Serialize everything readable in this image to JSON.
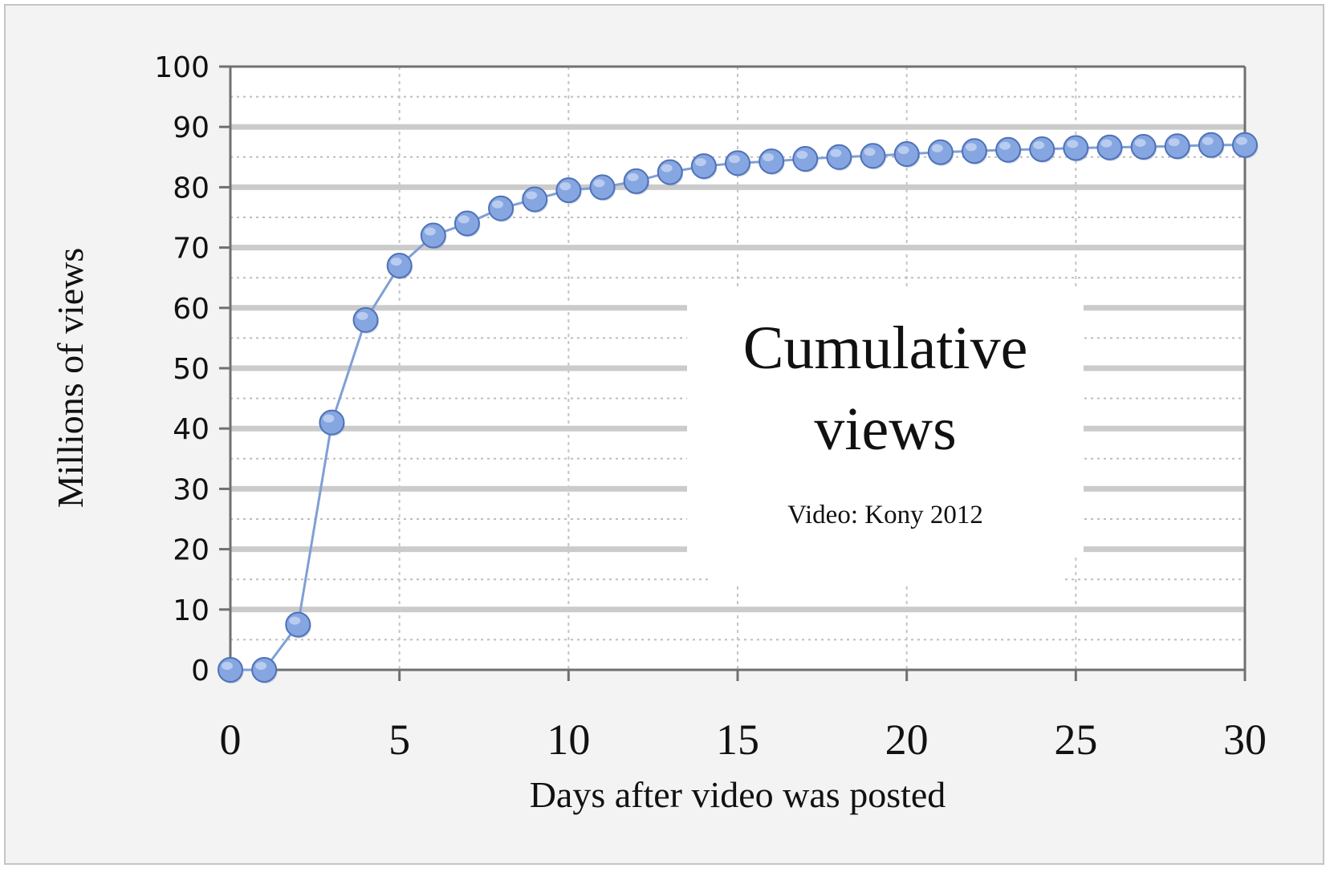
{
  "chart_data": {
    "type": "line",
    "title": "",
    "xlabel": "Days after video was posted",
    "ylabel": "Millions of views",
    "xlim": [
      0,
      30
    ],
    "ylim": [
      0,
      100
    ],
    "x_ticks": [
      "0",
      "5",
      "10",
      "15",
      "20",
      "25",
      "30"
    ],
    "y_ticks": [
      "0",
      "10",
      "20",
      "30",
      "40",
      "50",
      "60",
      "70",
      "80",
      "90",
      "100"
    ],
    "grid": true,
    "series": [
      {
        "name": "",
        "color": "#7f9fd6",
        "marker": "circle",
        "x": [
          0,
          1,
          2,
          3,
          4,
          5,
          6,
          7,
          8,
          9,
          10,
          11,
          12,
          13,
          14,
          15,
          16,
          17,
          18,
          19,
          20,
          21,
          22,
          23,
          24,
          25,
          26,
          27,
          28,
          29,
          30
        ],
        "y": [
          0,
          0,
          7.5,
          41,
          58,
          67,
          72,
          74,
          76.5,
          78,
          79.5,
          80,
          81,
          82.5,
          83.5,
          84,
          84.3,
          84.7,
          85,
          85.2,
          85.5,
          85.8,
          86,
          86.2,
          86.3,
          86.5,
          86.6,
          86.7,
          86.8,
          87,
          87
        ]
      }
    ],
    "annotation": {
      "title_line1": "Cumulative",
      "title_line2": "views",
      "subtitle": "Video: Kony 2012"
    }
  }
}
